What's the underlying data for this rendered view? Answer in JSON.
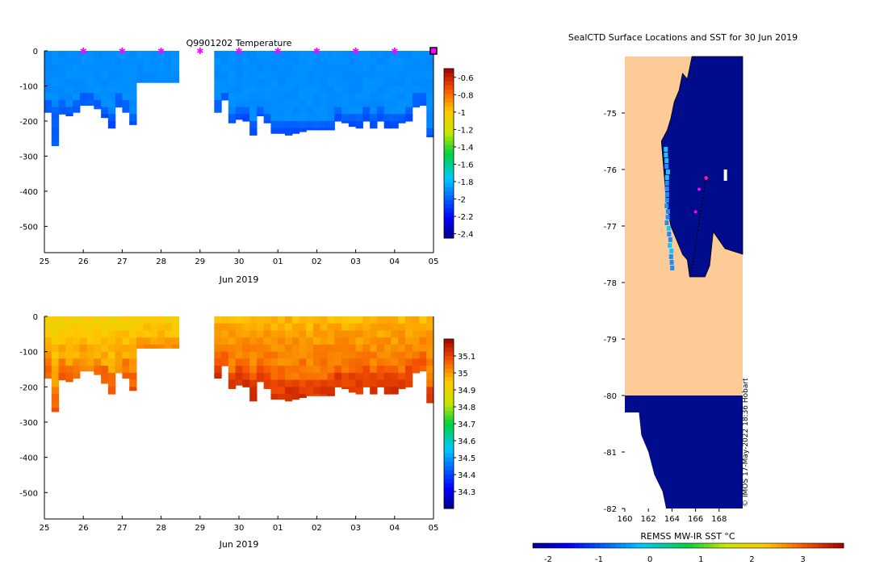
{
  "chart_data": [
    {
      "type": "heatmap",
      "title": "Q9901202  Temperature",
      "variable": "temperature",
      "xlabel": "Jun 2019",
      "ylabel": "",
      "x_ticks": [
        "25",
        "26",
        "27",
        "28",
        "29",
        "30",
        "01",
        "02",
        "03",
        "04",
        "05"
      ],
      "y_ticks": [
        "0",
        "-100",
        "-200",
        "-300",
        "-400",
        "-500"
      ],
      "ylim": [
        -575,
        0
      ],
      "colorbar": {
        "ticks": [
          "-0.6",
          "-0.8",
          "-1",
          "-1.2",
          "-1.4",
          "-1.6",
          "-1.8",
          "-2",
          "-2.2",
          "-2.4"
        ],
        "range": [
          -2.45,
          -0.5
        ]
      },
      "profile_markers_days": [
        1,
        2,
        3,
        4,
        5,
        6,
        7,
        8,
        9,
        10
      ],
      "profile_depths": [
        -175,
        -270,
        -180,
        -185,
        -175,
        -155,
        -155,
        -165,
        -190,
        -220,
        -160,
        -175,
        -210,
        -90,
        -90,
        -90,
        -90,
        -90,
        -90,
        null,
        null,
        null,
        null,
        null,
        -175,
        -140,
        -205,
        -195,
        -200,
        -240,
        -185,
        -205,
        -235,
        -235,
        -240,
        -235,
        -230,
        -225,
        -225,
        -225,
        -225,
        -200,
        -205,
        -215,
        -220,
        -200,
        -220,
        -200,
        -220,
        -220,
        -205,
        -200,
        -160,
        -155,
        -245
      ],
      "mean_value": -1.9
    },
    {
      "type": "heatmap",
      "title": "",
      "variable": "salinity",
      "xlabel": "Jun 2019",
      "ylabel": "",
      "x_ticks": [
        "25",
        "26",
        "27",
        "28",
        "29",
        "30",
        "01",
        "02",
        "03",
        "04",
        "05"
      ],
      "y_ticks": [
        "0",
        "-100",
        "-200",
        "-300",
        "-400",
        "-500"
      ],
      "ylim": [
        -575,
        0
      ],
      "colorbar": {
        "ticks": [
          "35.1",
          "35",
          "34.9",
          "34.8",
          "34.7",
          "34.6",
          "34.5",
          "34.4",
          "34.3"
        ],
        "range": [
          34.2,
          35.2
        ]
      }
    },
    {
      "type": "heatmap",
      "title": "SealCTD Surface Locations and SST for 30 Jun 2019",
      "xlabel": "",
      "x_ticks": [
        "160",
        "162",
        "164",
        "166",
        "168"
      ],
      "y_ticks": [
        "-75",
        "-76",
        "-77",
        "-78",
        "-79",
        "-80",
        "-81",
        "-82"
      ],
      "xlim": [
        160,
        170
      ],
      "ylim": [
        -82,
        -74
      ],
      "colorbar": {
        "label": "REMSS MW-IR SST °C",
        "ticks": [
          "-2",
          "-1",
          "0",
          "1",
          "2",
          "3"
        ],
        "range": [
          -2.3,
          3.8
        ]
      },
      "track_points_lonlat": [
        [
          166.9,
          -76.15
        ],
        [
          166.7,
          -76.4
        ],
        [
          166.4,
          -76.8
        ],
        [
          166.1,
          -77.2
        ],
        [
          165.8,
          -77.6
        ],
        [
          165.6,
          -77.85
        ]
      ],
      "annotation": "© IMOS 17-May-2022 18:36 Hobart"
    }
  ],
  "colors": {
    "sea_cold": "#000c8c",
    "land": "#fccb98",
    "profile_marker": "#ff00ff",
    "background": "#ffffff"
  }
}
